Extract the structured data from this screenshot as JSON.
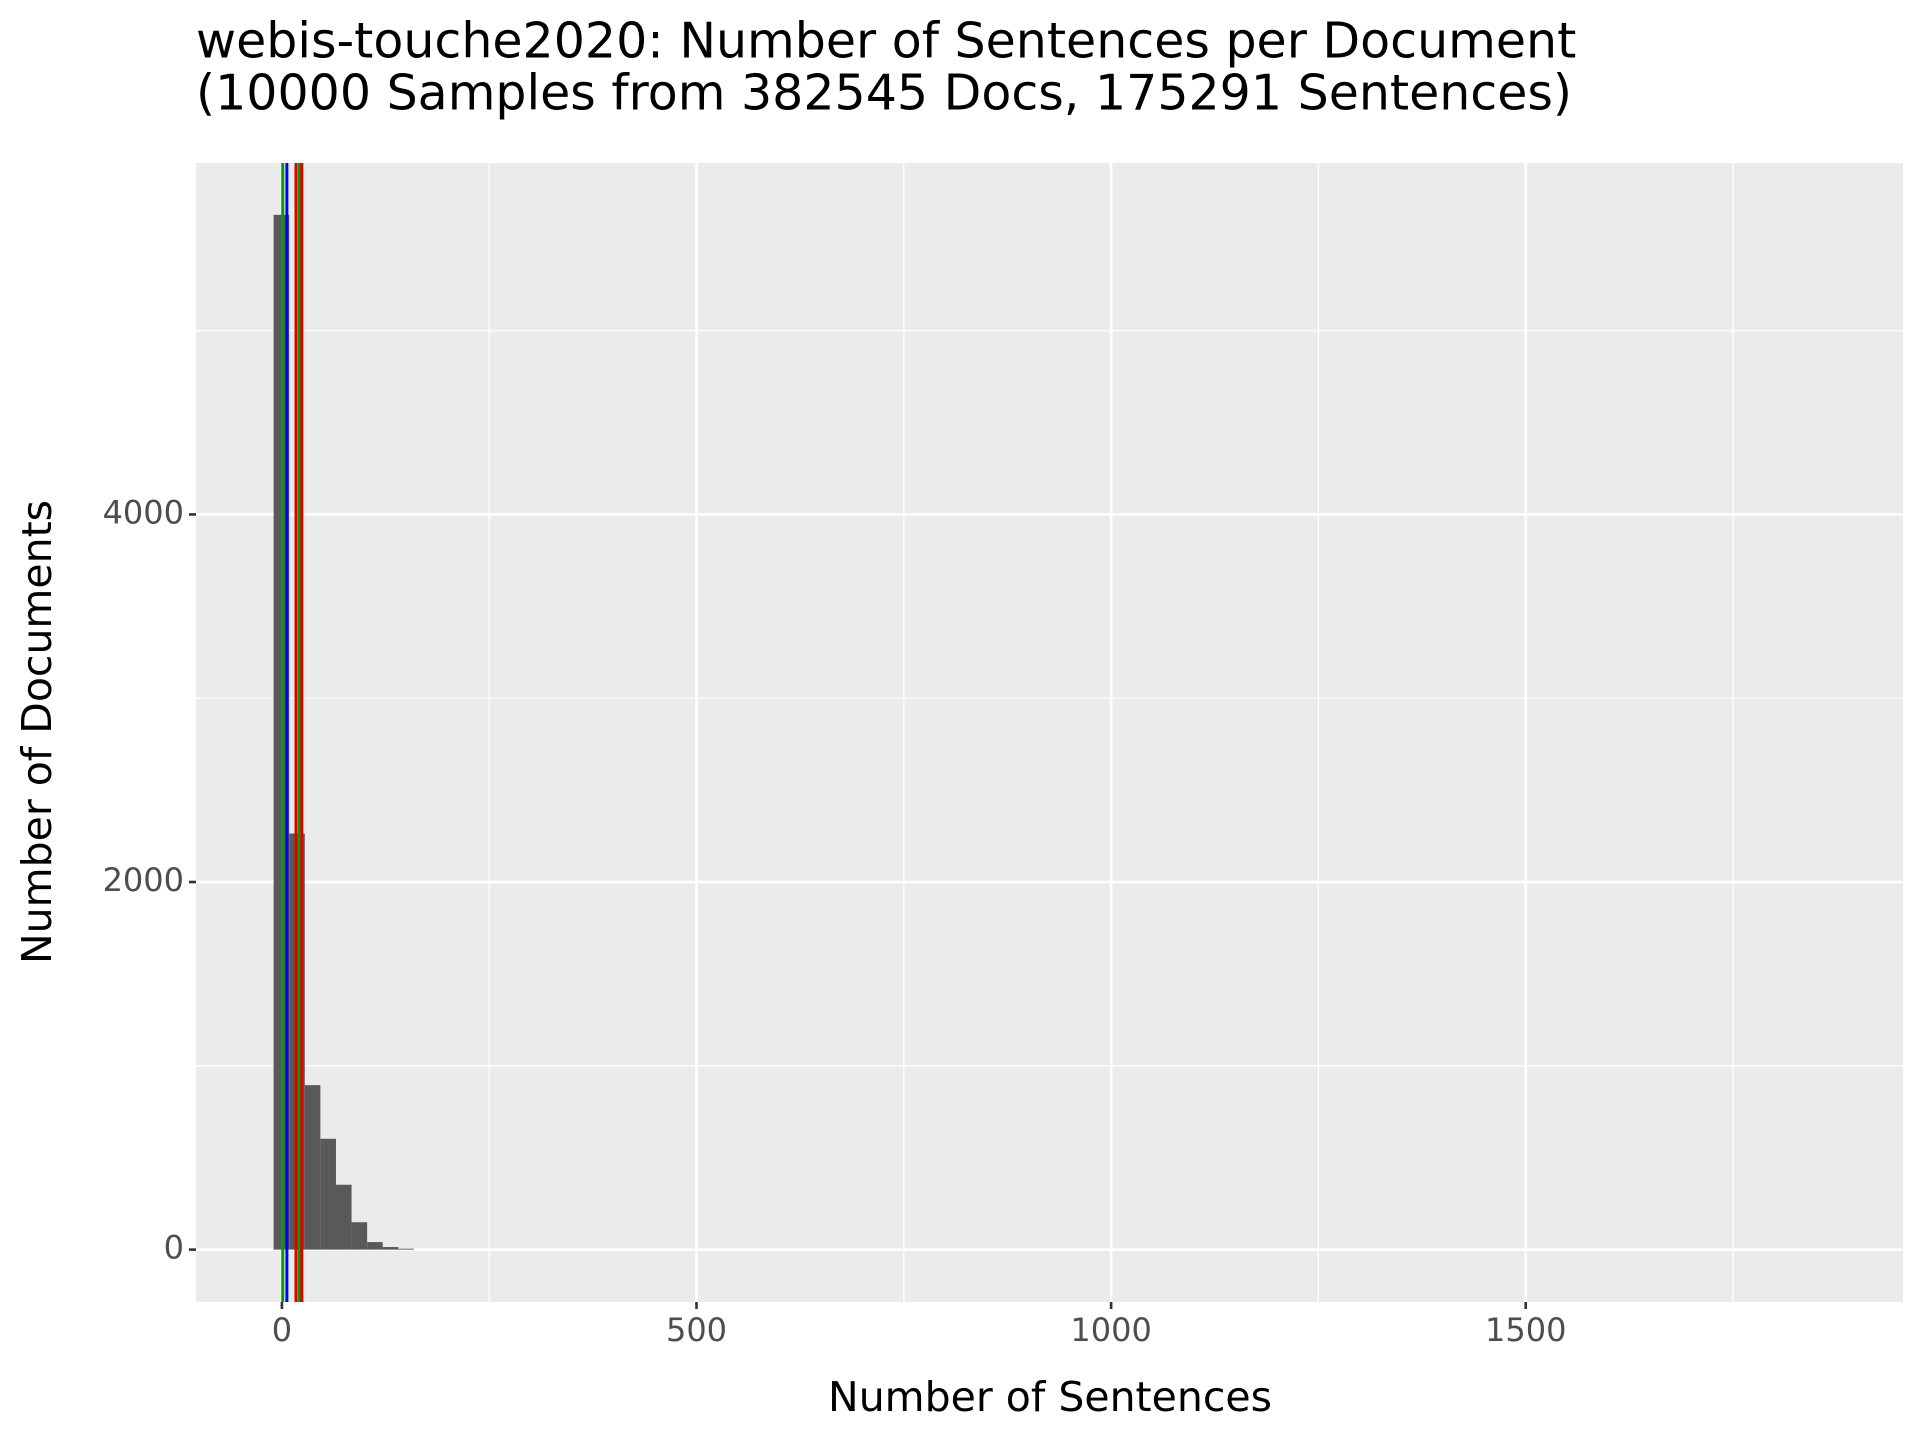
{
  "chart_data": {
    "type": "histogram",
    "title": "webis-touche2020: Number of Sentences per Document",
    "subtitle": "(10000 Samples from 382545 Docs, 175291 Sentences)",
    "x_label": "Number of Sentences",
    "y_label": "Number of Documents",
    "bins": [
      -10,
      8.8,
      27.6,
      46.4,
      65.2,
      84,
      102.8,
      121.6,
      140.4,
      159.2
    ],
    "counts": [
      5630,
      2264,
      895,
      603,
      353,
      149,
      41,
      14,
      5
    ],
    "color": "#595959",
    "vlines": [
      {
        "x": 1,
        "color": "#00a000"
      },
      {
        "x": 6,
        "color": "#0000ff"
      },
      {
        "x": 17,
        "color": "#e00000"
      },
      {
        "x": 21,
        "color": "#00a000"
      },
      {
        "x": 24,
        "color": "#e00000"
      }
    ],
    "xlim": [
      -103.6,
      1955
    ],
    "ylim": [
      -285,
      5912
    ],
    "xticks": [
      0,
      500,
      1000,
      1500
    ],
    "xminor": [
      250,
      750,
      1250,
      1750
    ],
    "yticks": [
      0,
      2000,
      4000
    ],
    "yminor": [
      1000,
      3000,
      5000
    ],
    "grid": true
  }
}
